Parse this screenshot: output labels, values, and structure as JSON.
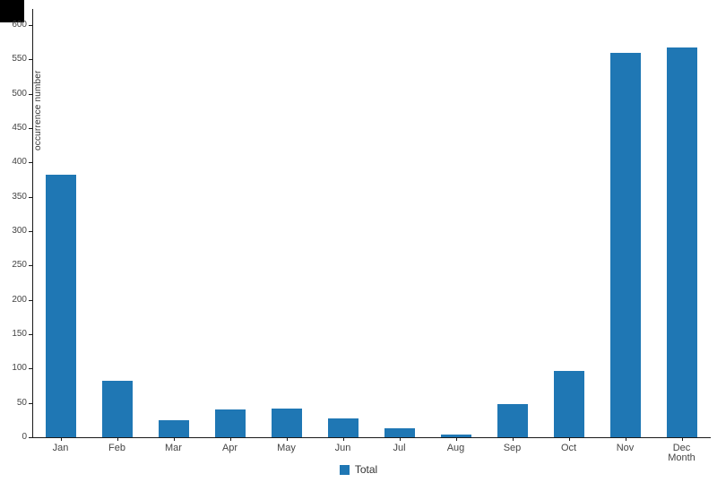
{
  "page": {
    "background": "#ffffff",
    "decor_box_color": "#000000"
  },
  "chart_data": {
    "type": "bar",
    "title": "",
    "categories": [
      "Jan",
      "Feb",
      "Mar",
      "Apr",
      "May",
      "Jun",
      "Jul",
      "Aug",
      "Sep",
      "Oct",
      "Nov",
      "Dec"
    ],
    "values": [
      382,
      82,
      25,
      40,
      42,
      27,
      13,
      4,
      48,
      97,
      560,
      568
    ],
    "series": [
      {
        "name": "Total",
        "values": [
          382,
          82,
          25,
          40,
          42,
          27,
          13,
          4,
          48,
          97,
          560,
          568
        ]
      }
    ],
    "xlabel": "Month",
    "ylabel": "occurrence number",
    "ylim": [
      0,
      600
    ],
    "yticks": [
      0,
      50,
      100,
      150,
      200,
      250,
      300,
      350,
      400,
      450,
      500,
      550,
      600
    ],
    "grid": false,
    "bar_color": "#1f77b4",
    "axis_color": "#1a1a1a",
    "legend": {
      "position": "bottom",
      "items": [
        {
          "label": "Total",
          "color": "#1f77b4"
        }
      ]
    }
  }
}
